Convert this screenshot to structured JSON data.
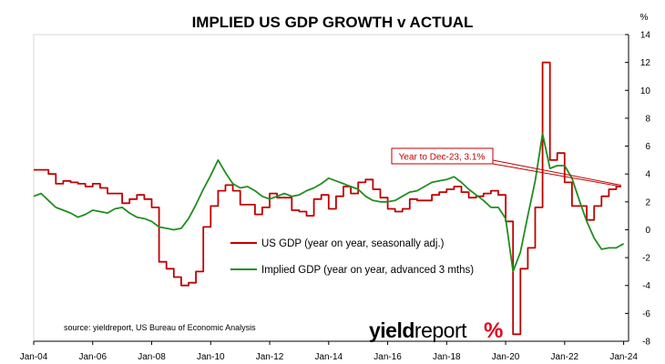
{
  "chart_data": {
    "type": "line",
    "title": "IMPLIED US GDP GROWTH v ACTUAL",
    "yunit": "%",
    "ylim": [
      -8,
      14
    ],
    "yticks": [
      14,
      12,
      10,
      8,
      6,
      4,
      2,
      0,
      -2,
      -4,
      -6,
      -8
    ],
    "xlim": [
      "2004-01",
      "2024-03"
    ],
    "xticks": [
      "Jan-04",
      "Jan-06",
      "Jan-08",
      "Jan-10",
      "Jan-12",
      "Jan-14",
      "Jan-16",
      "Jan-18",
      "Jan-20",
      "Jan-22",
      "Jan-24"
    ],
    "grid": false,
    "legend_position": "center-left",
    "series": [
      {
        "name": "US GDP (year on year, seasonally adj.)",
        "color": "#c00000",
        "step": true,
        "x": [
          "2004-01",
          "2004-04",
          "2004-07",
          "2004-10",
          "2005-01",
          "2005-04",
          "2005-07",
          "2005-10",
          "2006-01",
          "2006-04",
          "2006-07",
          "2006-10",
          "2007-01",
          "2007-04",
          "2007-07",
          "2007-10",
          "2008-01",
          "2008-04",
          "2008-07",
          "2008-10",
          "2009-01",
          "2009-04",
          "2009-07",
          "2009-10",
          "2010-01",
          "2010-04",
          "2010-07",
          "2010-10",
          "2011-01",
          "2011-04",
          "2011-07",
          "2011-10",
          "2012-01",
          "2012-04",
          "2012-07",
          "2012-10",
          "2013-01",
          "2013-04",
          "2013-07",
          "2013-10",
          "2014-01",
          "2014-04",
          "2014-07",
          "2014-10",
          "2015-01",
          "2015-04",
          "2015-07",
          "2015-10",
          "2016-01",
          "2016-04",
          "2016-07",
          "2016-10",
          "2017-01",
          "2017-04",
          "2017-07",
          "2017-10",
          "2018-01",
          "2018-04",
          "2018-07",
          "2018-10",
          "2019-01",
          "2019-04",
          "2019-07",
          "2019-10",
          "2020-01",
          "2020-04",
          "2020-07",
          "2020-10",
          "2021-01",
          "2021-04",
          "2021-07",
          "2021-10",
          "2022-01",
          "2022-04",
          "2022-07",
          "2022-10",
          "2023-01",
          "2023-04",
          "2023-07",
          "2023-10",
          "2023-12"
        ],
        "values": [
          4.3,
          4.3,
          4.0,
          3.3,
          3.5,
          3.4,
          3.3,
          3.1,
          3.3,
          3.0,
          2.6,
          2.6,
          1.9,
          2.2,
          2.5,
          2.2,
          1.6,
          -2.3,
          -2.8,
          -3.4,
          -4.0,
          -3.8,
          -3.0,
          0.2,
          1.7,
          2.8,
          3.2,
          2.8,
          1.8,
          1.8,
          1.1,
          1.6,
          2.6,
          2.3,
          2.3,
          1.4,
          1.3,
          1.0,
          2.2,
          2.5,
          1.5,
          2.4,
          3.1,
          2.6,
          3.4,
          3.6,
          2.9,
          2.3,
          1.5,
          1.3,
          1.5,
          2.2,
          2.1,
          2.1,
          2.5,
          2.7,
          2.9,
          3.1,
          2.7,
          2.3,
          2.4,
          2.6,
          2.8,
          2.5,
          0.6,
          -7.5,
          -2.8,
          -1.3,
          1.6,
          12.0,
          5.0,
          5.5,
          3.4,
          1.7,
          1.7,
          0.7,
          1.7,
          2.4,
          2.9,
          3.1,
          3.1
        ]
      },
      {
        "name": "Implied GDP (year on year, advanced 3 mths)",
        "color": "#1f8f1f",
        "step": false,
        "x": [
          "2004-01",
          "2004-04",
          "2004-07",
          "2004-10",
          "2005-01",
          "2005-04",
          "2005-07",
          "2005-10",
          "2006-01",
          "2006-04",
          "2006-07",
          "2006-10",
          "2007-01",
          "2007-04",
          "2007-07",
          "2007-10",
          "2008-01",
          "2008-04",
          "2008-07",
          "2008-10",
          "2009-01",
          "2009-04",
          "2009-07",
          "2009-10",
          "2010-01",
          "2010-04",
          "2010-07",
          "2010-10",
          "2011-01",
          "2011-04",
          "2011-07",
          "2011-10",
          "2012-01",
          "2012-04",
          "2012-07",
          "2012-10",
          "2013-01",
          "2013-04",
          "2013-07",
          "2013-10",
          "2014-01",
          "2014-04",
          "2014-07",
          "2014-10",
          "2015-01",
          "2015-04",
          "2015-07",
          "2015-10",
          "2016-01",
          "2016-04",
          "2016-07",
          "2016-10",
          "2017-01",
          "2017-04",
          "2017-07",
          "2017-10",
          "2018-01",
          "2018-04",
          "2018-07",
          "2018-10",
          "2019-01",
          "2019-04",
          "2019-07",
          "2019-10",
          "2020-01",
          "2020-04",
          "2020-07",
          "2020-10",
          "2021-01",
          "2021-04",
          "2021-07",
          "2021-10",
          "2022-01",
          "2022-04",
          "2022-07",
          "2022-10",
          "2023-01",
          "2023-04",
          "2023-07",
          "2023-10",
          "2024-01"
        ],
        "values": [
          2.4,
          2.6,
          2.1,
          1.6,
          1.4,
          1.2,
          0.9,
          1.1,
          1.4,
          1.3,
          1.2,
          1.5,
          1.6,
          1.2,
          0.9,
          0.8,
          0.6,
          0.2,
          0.1,
          0.0,
          0.1,
          0.8,
          1.8,
          2.9,
          3.9,
          5.0,
          4.1,
          3.3,
          3.0,
          3.1,
          2.8,
          2.4,
          2.2,
          2.4,
          2.6,
          2.4,
          2.5,
          2.8,
          3.0,
          3.3,
          3.7,
          3.5,
          3.3,
          3.1,
          2.9,
          2.4,
          2.1,
          2.0,
          2.0,
          2.1,
          2.4,
          2.7,
          2.8,
          3.1,
          3.4,
          3.5,
          3.6,
          3.8,
          3.4,
          2.9,
          2.5,
          2.1,
          1.6,
          1.6,
          0.8,
          -3.0,
          -1.6,
          1.0,
          3.5,
          6.9,
          4.4,
          4.6,
          4.6,
          3.7,
          2.1,
          0.6,
          -0.6,
          -1.4,
          -1.3,
          -1.3,
          -1.0
        ]
      }
    ],
    "annotation": {
      "text": "Year to Dec-23, 3.1%",
      "x": "2023-12",
      "y": 3.1
    },
    "source": "source: yieldreport, US Bureau of Economic Analysis",
    "logo": {
      "part1": "yield",
      "part2": "report",
      "symbol": "%"
    }
  }
}
